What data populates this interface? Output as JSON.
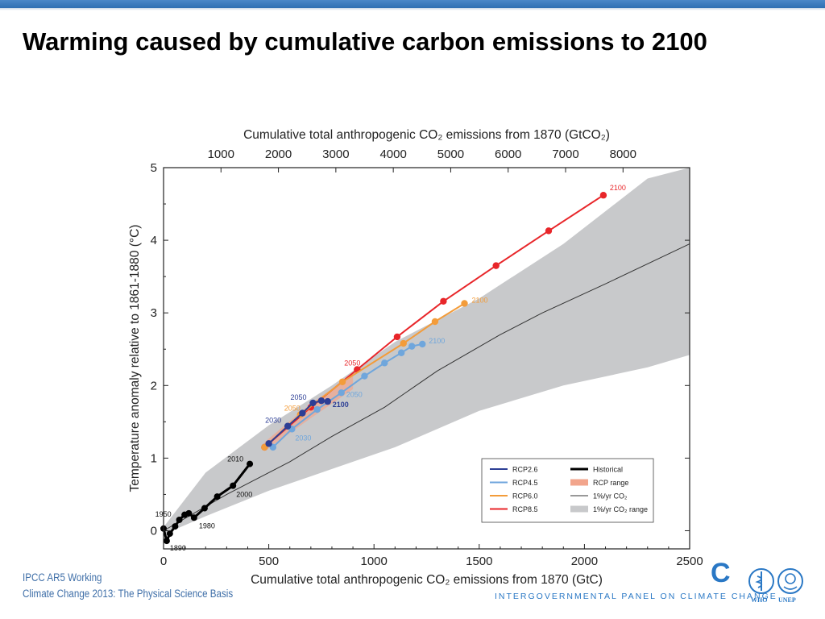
{
  "slide": {
    "title": "Warming caused by cumulative carbon emissions to 2100",
    "footer_line1": "IPCC AR5 Working",
    "footer_line2": "Climate Change 2013: The Physical Science Basis",
    "ipcc_mark": "C",
    "ipcc_name": "INTERGOVERNMENTAL PANEL ON CLIMATE CHANGE",
    "who_label": "WHO",
    "unep_label": "UNEP",
    "accent_color": "#2a78c5"
  },
  "chart_data": {
    "type": "line",
    "xlabel": "Cumulative total anthropogenic CO₂ emissions from 1870 (GtC)",
    "ylabel": "Temperature anomaly relative to 1861-1880 (°C)",
    "top_xlabel": "Cumulative total anthropogenic CO₂ emissions from 1870 (GtCO₂)",
    "xlim": [
      0,
      2500
    ],
    "ylim": [
      -0.25,
      5
    ],
    "xticks": [
      0,
      500,
      1000,
      1500,
      2000,
      2500
    ],
    "yticks": [
      0,
      1,
      2,
      3,
      4,
      5
    ],
    "top_xticks": [
      1000,
      2000,
      3000,
      4000,
      5000,
      6000,
      7000,
      8000
    ],
    "grid": false,
    "legend_position": "bottom-right",
    "legend": [
      {
        "label": "RCP2.6",
        "color": "#2c3e95",
        "kind": "line"
      },
      {
        "label": "RCP4.5",
        "color": "#6fa6dc",
        "kind": "line"
      },
      {
        "label": "RCP6.0",
        "color": "#f39c3a",
        "kind": "line"
      },
      {
        "label": "RCP8.5",
        "color": "#e8262a",
        "kind": "line"
      },
      {
        "label": "Historical",
        "color": "#000000",
        "kind": "thick"
      },
      {
        "label": "RCP range",
        "color": "#f2a58c",
        "kind": "band"
      },
      {
        "label": "1%/yr CO₂",
        "color": "#333333",
        "kind": "thin"
      },
      {
        "label": "1%/yr CO₂ range",
        "color": "#c8c9cb",
        "kind": "band"
      }
    ],
    "series": [
      {
        "name": "RCP8.5",
        "color": "#e8262a",
        "x": [
          480,
          700,
          920,
          1110,
          1330,
          1580,
          1830,
          2090
        ],
        "y": [
          1.15,
          1.7,
          2.22,
          2.67,
          3.16,
          3.65,
          4.13,
          4.62
        ],
        "labels": [
          {
            "index": 2,
            "text": "2050"
          },
          {
            "index": 7,
            "text": "2100"
          }
        ]
      },
      {
        "name": "RCP6.0",
        "color": "#f39c3a",
        "x": [
          480,
          650,
          850,
          1140,
          1290,
          1430
        ],
        "y": [
          1.15,
          1.6,
          2.05,
          2.58,
          2.88,
          3.13
        ],
        "labels": [
          {
            "index": 1,
            "text": "2050"
          },
          {
            "index": 5,
            "text": "2100"
          }
        ]
      },
      {
        "name": "RCP4.5",
        "color": "#6fa6dc",
        "x": [
          520,
          610,
          730,
          845,
          955,
          1050,
          1130,
          1180,
          1230
        ],
        "y": [
          1.15,
          1.4,
          1.67,
          1.9,
          2.13,
          2.31,
          2.45,
          2.54,
          2.57
        ],
        "labels": [
          {
            "index": 1,
            "text": "2030"
          },
          {
            "index": 3,
            "text": "2050"
          },
          {
            "index": 8,
            "text": "2100"
          }
        ]
      },
      {
        "name": "RCP2.6",
        "color": "#2c3e95",
        "x": [
          500,
          590,
          660,
          710,
          750,
          780
        ],
        "y": [
          1.2,
          1.44,
          1.62,
          1.76,
          1.79,
          1.78
        ],
        "labels": [
          {
            "index": 1,
            "text": "2030"
          },
          {
            "index": 3,
            "text": "2050"
          },
          {
            "index": 5,
            "text": "2100"
          }
        ]
      },
      {
        "name": "Historical",
        "color": "#000000",
        "x": [
          0,
          15,
          30,
          55,
          75,
          100,
          120,
          145,
          195,
          255,
          330,
          410
        ],
        "y": [
          0.03,
          -0.14,
          -0.04,
          0.06,
          0.15,
          0.22,
          0.24,
          0.18,
          0.31,
          0.47,
          0.62,
          0.92
        ],
        "labels": [
          {
            "index": 1,
            "text": "1890"
          },
          {
            "index": 4,
            "text": "1950"
          },
          {
            "index": 7,
            "text": "1980"
          },
          {
            "index": 10,
            "text": "2000"
          },
          {
            "index": 11,
            "text": "2010"
          }
        ]
      }
    ],
    "one_percent_line": {
      "name": "1%/yr CO₂",
      "x": [
        0,
        300,
        600,
        800,
        1050,
        1300,
        1600,
        1800,
        2100,
        2500
      ],
      "y": [
        0,
        0.5,
        0.95,
        1.3,
        1.7,
        2.2,
        2.7,
        3.0,
        3.4,
        3.95
      ]
    },
    "one_percent_range": {
      "name": "1%/yr CO₂ range",
      "x": [
        0,
        200,
        500,
        800,
        1100,
        1500,
        1900,
        2300,
        2500
      ],
      "upper": [
        0.05,
        0.8,
        1.45,
        2.0,
        2.6,
        3.2,
        3.95,
        4.85,
        5.0
      ],
      "lower": [
        -0.05,
        0.2,
        0.55,
        0.85,
        1.15,
        1.65,
        2.0,
        2.25,
        2.42
      ]
    },
    "rcp_range": {
      "name": "RCP range",
      "x": [
        480,
        700,
        900
      ],
      "upper": [
        1.22,
        1.75,
        2.15
      ],
      "lower": [
        1.1,
        1.55,
        1.95
      ]
    }
  }
}
